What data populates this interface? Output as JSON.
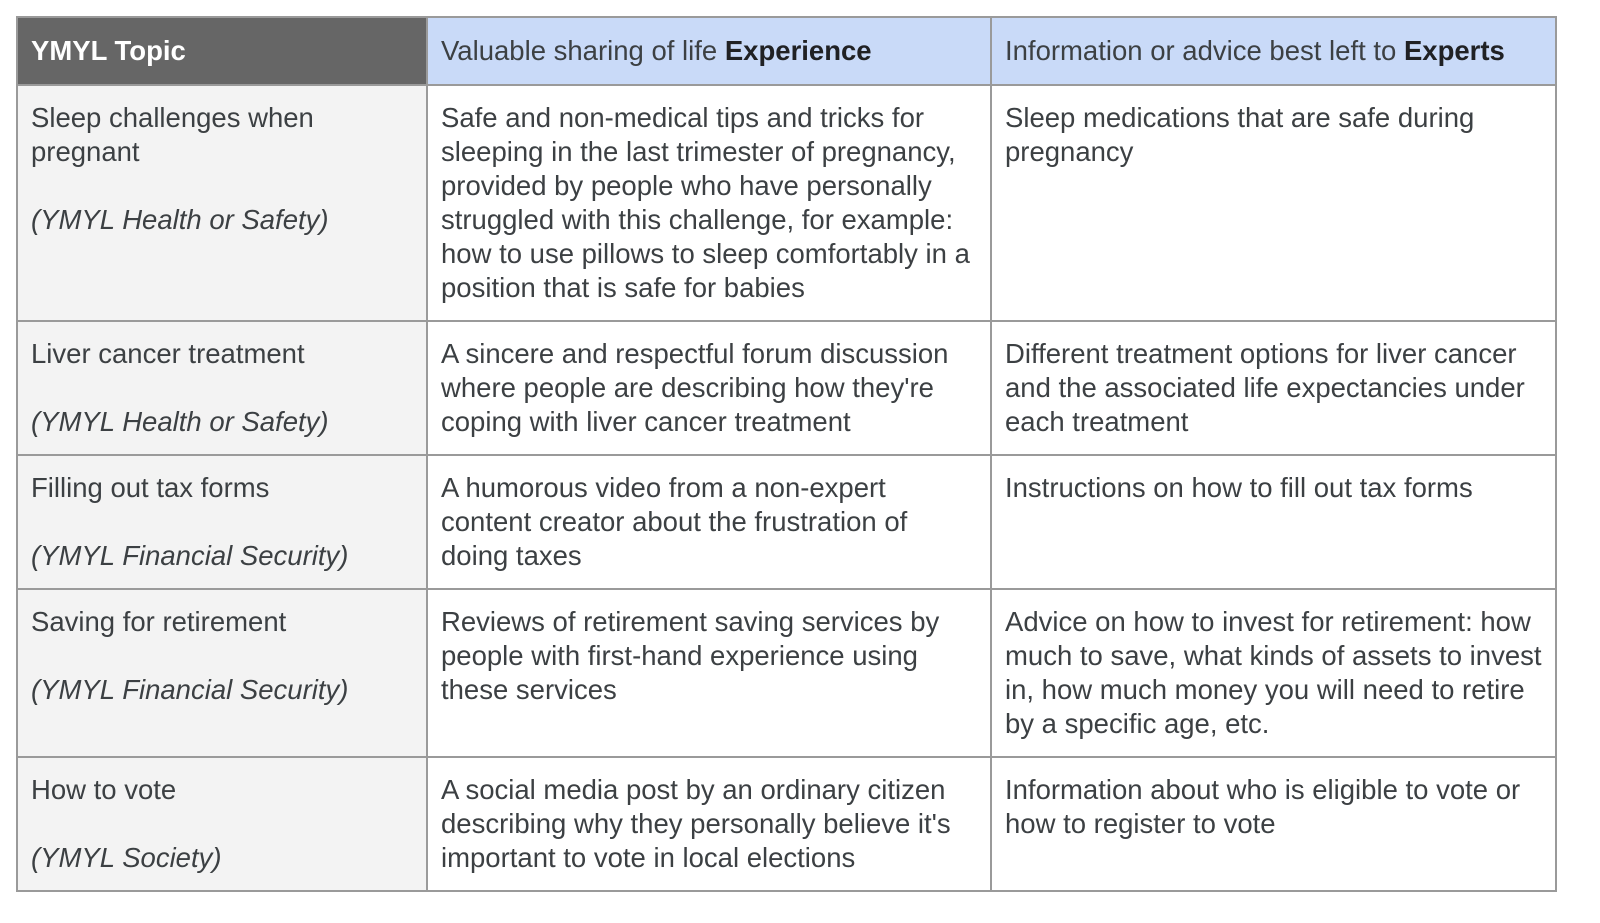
{
  "header": {
    "topic": "YMYL Topic",
    "experience_prefix": "Valuable sharing of life ",
    "experience_bold": "Experience",
    "experts_prefix": "Information or advice best left to ",
    "experts_bold": "Experts"
  },
  "rows": [
    {
      "topic": "Sleep challenges when pregnant",
      "category": "(YMYL Health or Safety)",
      "experience": "Safe and non-medical tips and tricks for sleeping in the last trimester of pregnancy, provided by people who have personally struggled with this challenge, for example: how to use pillows to sleep comfortably in a position that is safe for babies",
      "experts": "Sleep medications that are safe during pregnancy"
    },
    {
      "topic": "Liver cancer treatment",
      "category": "(YMYL Health or Safety)",
      "experience": "A sincere and respectful forum discussion where people are describing how they're coping with liver cancer treatment",
      "experts": "Different treatment options for liver cancer and the associated life expectancies under each treatment"
    },
    {
      "topic": "Filling out tax forms",
      "category": "(YMYL Financial Security)",
      "experience": "A humorous video from a non-expert content creator about the frustration of doing taxes",
      "experts": "Instructions on how to fill out tax forms"
    },
    {
      "topic": "Saving for retirement",
      "category": "(YMYL Financial Security)",
      "experience": "Reviews of retirement saving services by people with first-hand experience using these services",
      "experts": "Advice on how to invest for retirement: how much to save, what kinds of assets to invest in, how much money you will need to retire by a specific age, etc."
    },
    {
      "topic": "How to vote",
      "category": "(YMYL Society)",
      "experience": "A social media post by an ordinary citizen describing why they personally believe it's important to vote in local elections",
      "experts": "Information about who is eligible to vote or how to register to vote"
    }
  ]
}
